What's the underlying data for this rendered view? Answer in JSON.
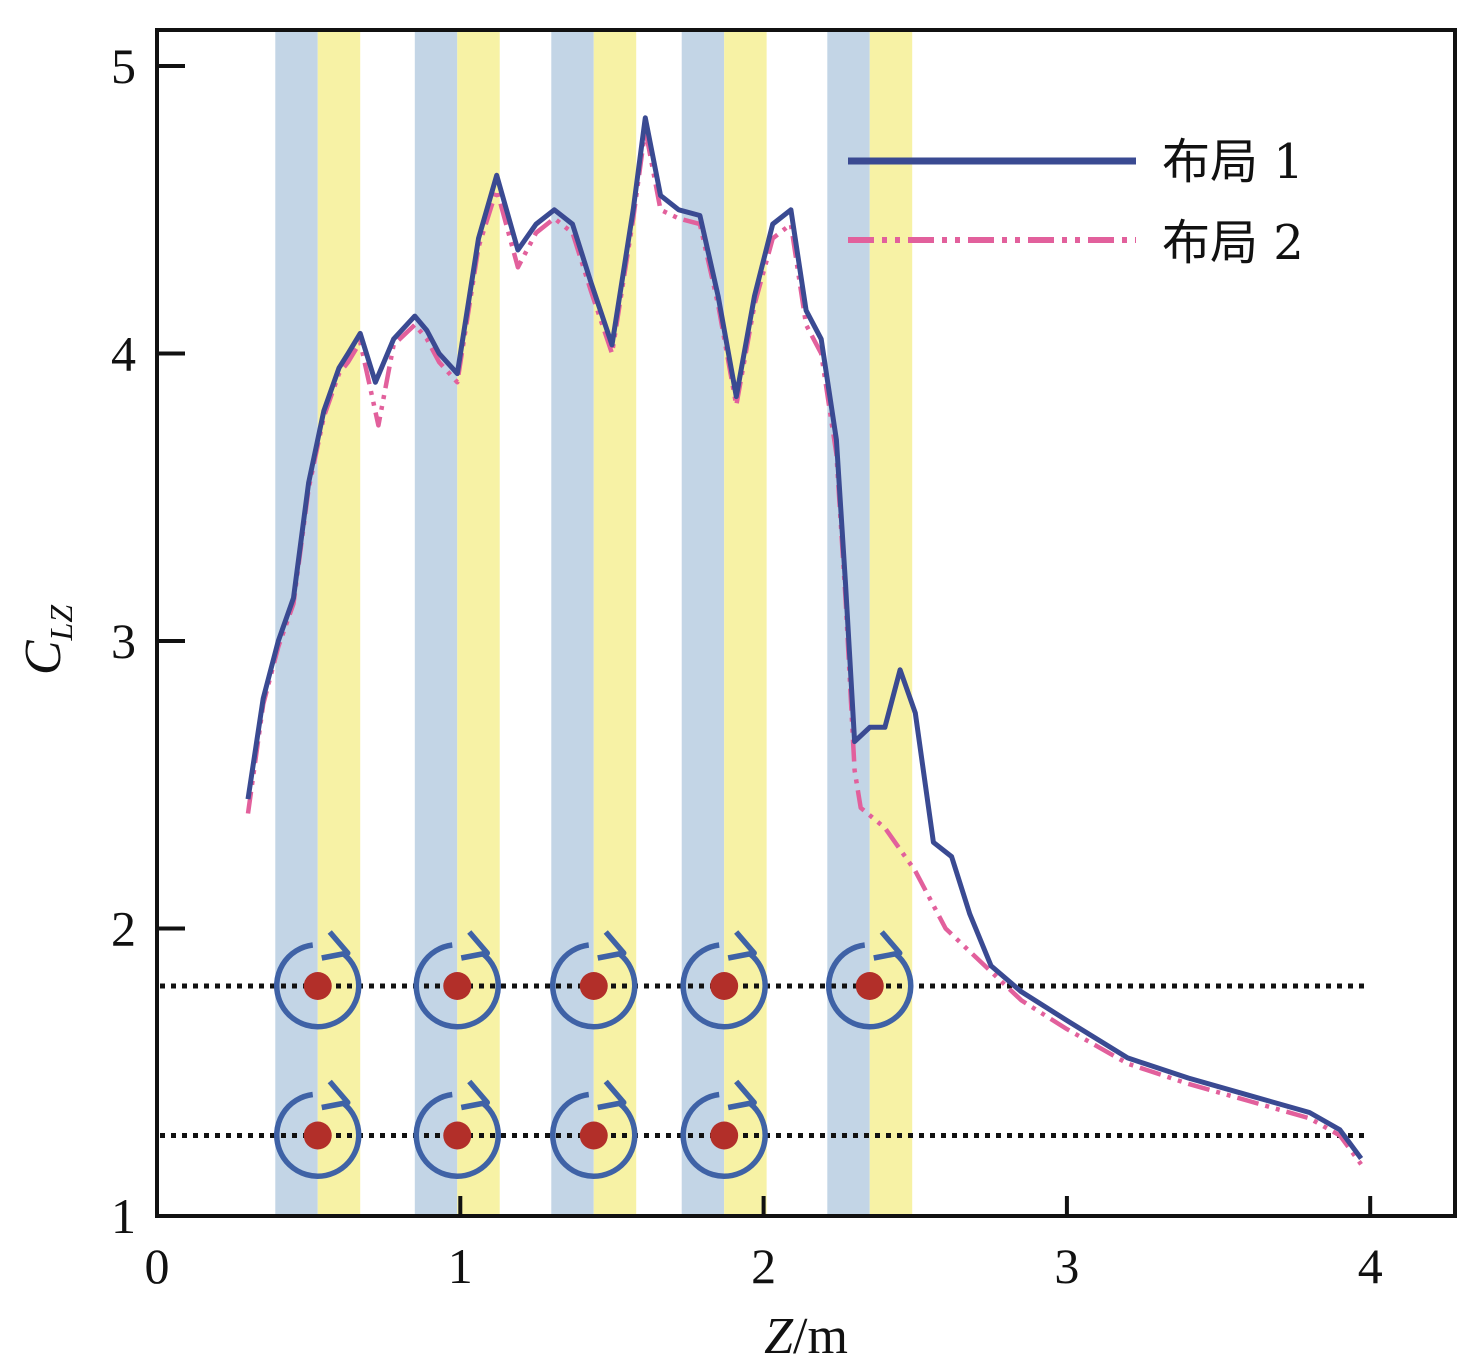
{
  "chart_data": {
    "type": "line",
    "xlabel_main": "Z",
    "xlabel_unit": "/m",
    "ylabel_main": "C",
    "ylabel_sub": "LZ",
    "xlim": [
      0,
      4.25
    ],
    "ylim": [
      1,
      5.12
    ],
    "xticks": [
      "0",
      "1",
      "2",
      "3",
      "4"
    ],
    "yticks": [
      "1",
      "2",
      "3",
      "4",
      "5"
    ],
    "legend_position": "top-right",
    "series": [
      {
        "name": "布局 1",
        "color": "#3a4a92",
        "style": "solid",
        "points": [
          [
            0.3,
            2.45
          ],
          [
            0.35,
            2.8
          ],
          [
            0.4,
            3.0
          ],
          [
            0.45,
            3.15
          ],
          [
            0.5,
            3.55
          ],
          [
            0.55,
            3.8
          ],
          [
            0.6,
            3.95
          ],
          [
            0.63,
            4.0
          ],
          [
            0.67,
            4.07
          ],
          [
            0.72,
            3.9
          ],
          [
            0.78,
            4.05
          ],
          [
            0.85,
            4.13
          ],
          [
            0.89,
            4.08
          ],
          [
            0.93,
            4.0
          ],
          [
            0.99,
            3.93
          ],
          [
            1.06,
            4.4
          ],
          [
            1.12,
            4.62
          ],
          [
            1.19,
            4.36
          ],
          [
            1.25,
            4.45
          ],
          [
            1.31,
            4.5
          ],
          [
            1.37,
            4.45
          ],
          [
            1.43,
            4.25
          ],
          [
            1.5,
            4.03
          ],
          [
            1.57,
            4.5
          ],
          [
            1.61,
            4.82
          ],
          [
            1.66,
            4.55
          ],
          [
            1.72,
            4.5
          ],
          [
            1.79,
            4.48
          ],
          [
            1.85,
            4.2
          ],
          [
            1.91,
            3.85
          ],
          [
            1.97,
            4.2
          ],
          [
            2.03,
            4.45
          ],
          [
            2.09,
            4.5
          ],
          [
            2.14,
            4.15
          ],
          [
            2.19,
            4.05
          ],
          [
            2.24,
            3.7
          ],
          [
            2.27,
            3.2
          ],
          [
            2.3,
            2.65
          ],
          [
            2.35,
            2.7
          ],
          [
            2.4,
            2.7
          ],
          [
            2.45,
            2.9
          ],
          [
            2.5,
            2.75
          ],
          [
            2.56,
            2.3
          ],
          [
            2.62,
            2.25
          ],
          [
            2.68,
            2.05
          ],
          [
            2.75,
            1.87
          ],
          [
            2.85,
            1.78
          ],
          [
            3.0,
            1.68
          ],
          [
            3.2,
            1.55
          ],
          [
            3.4,
            1.48
          ],
          [
            3.6,
            1.42
          ],
          [
            3.8,
            1.36
          ],
          [
            3.9,
            1.3
          ],
          [
            3.97,
            1.2
          ]
        ]
      },
      {
        "name": "布局 2",
        "color": "#e2609c",
        "style": "dash-dot",
        "points": [
          [
            0.3,
            2.4
          ],
          [
            0.35,
            2.78
          ],
          [
            0.4,
            2.98
          ],
          [
            0.45,
            3.13
          ],
          [
            0.5,
            3.53
          ],
          [
            0.55,
            3.78
          ],
          [
            0.6,
            3.93
          ],
          [
            0.63,
            3.97
          ],
          [
            0.67,
            4.04
          ],
          [
            0.73,
            3.75
          ],
          [
            0.78,
            4.03
          ],
          [
            0.85,
            4.1
          ],
          [
            0.89,
            4.05
          ],
          [
            0.93,
            3.97
          ],
          [
            0.99,
            3.9
          ],
          [
            1.06,
            4.37
          ],
          [
            1.12,
            4.57
          ],
          [
            1.19,
            4.3
          ],
          [
            1.25,
            4.42
          ],
          [
            1.31,
            4.47
          ],
          [
            1.37,
            4.42
          ],
          [
            1.43,
            4.22
          ],
          [
            1.5,
            4.0
          ],
          [
            1.57,
            4.47
          ],
          [
            1.61,
            4.78
          ],
          [
            1.66,
            4.5
          ],
          [
            1.72,
            4.47
          ],
          [
            1.79,
            4.45
          ],
          [
            1.85,
            4.17
          ],
          [
            1.91,
            3.82
          ],
          [
            1.97,
            4.17
          ],
          [
            2.03,
            4.4
          ],
          [
            2.09,
            4.45
          ],
          [
            2.14,
            4.1
          ],
          [
            2.19,
            4.0
          ],
          [
            2.24,
            3.65
          ],
          [
            2.27,
            3.15
          ],
          [
            2.3,
            2.55
          ],
          [
            2.32,
            2.42
          ],
          [
            2.4,
            2.35
          ],
          [
            2.5,
            2.2
          ],
          [
            2.6,
            2.0
          ],
          [
            2.7,
            1.9
          ],
          [
            2.85,
            1.75
          ],
          [
            3.0,
            1.65
          ],
          [
            3.2,
            1.53
          ],
          [
            3.4,
            1.46
          ],
          [
            3.6,
            1.4
          ],
          [
            3.8,
            1.34
          ],
          [
            3.9,
            1.28
          ],
          [
            3.97,
            1.18
          ]
        ]
      }
    ],
    "shaded_bands": [
      {
        "x0": 0.39,
        "x1": 0.53,
        "color": "#c3d5e6"
      },
      {
        "x0": 0.53,
        "x1": 0.67,
        "color": "#f7f2a5"
      },
      {
        "x0": 0.85,
        "x1": 0.99,
        "color": "#c3d5e6"
      },
      {
        "x0": 0.99,
        "x1": 1.13,
        "color": "#f7f2a5"
      },
      {
        "x0": 1.3,
        "x1": 1.44,
        "color": "#c3d5e6"
      },
      {
        "x0": 1.44,
        "x1": 1.58,
        "color": "#f7f2a5"
      },
      {
        "x0": 1.73,
        "x1": 1.87,
        "color": "#c3d5e6"
      },
      {
        "x0": 1.87,
        "x1": 2.01,
        "color": "#f7f2a5"
      },
      {
        "x0": 2.21,
        "x1": 2.35,
        "color": "#c3d5e6"
      },
      {
        "x0": 2.35,
        "x1": 2.49,
        "color": "#f7f2a5"
      }
    ],
    "reference_lines": [
      {
        "y": 1.8,
        "color": "#111111",
        "style": "dotted"
      },
      {
        "y": 1.28,
        "color": "#111111",
        "style": "dotted"
      }
    ],
    "rotor_markers": [
      {
        "x": 0.53,
        "y": 1.8
      },
      {
        "x": 0.99,
        "y": 1.8
      },
      {
        "x": 1.44,
        "y": 1.8
      },
      {
        "x": 1.87,
        "y": 1.8
      },
      {
        "x": 2.35,
        "y": 1.8
      },
      {
        "x": 0.53,
        "y": 1.28
      },
      {
        "x": 0.99,
        "y": 1.28
      },
      {
        "x": 1.44,
        "y": 1.28
      },
      {
        "x": 1.87,
        "y": 1.28
      }
    ],
    "marker_colors": {
      "ring": "#3f62a6",
      "dot": "#b22f29"
    }
  }
}
